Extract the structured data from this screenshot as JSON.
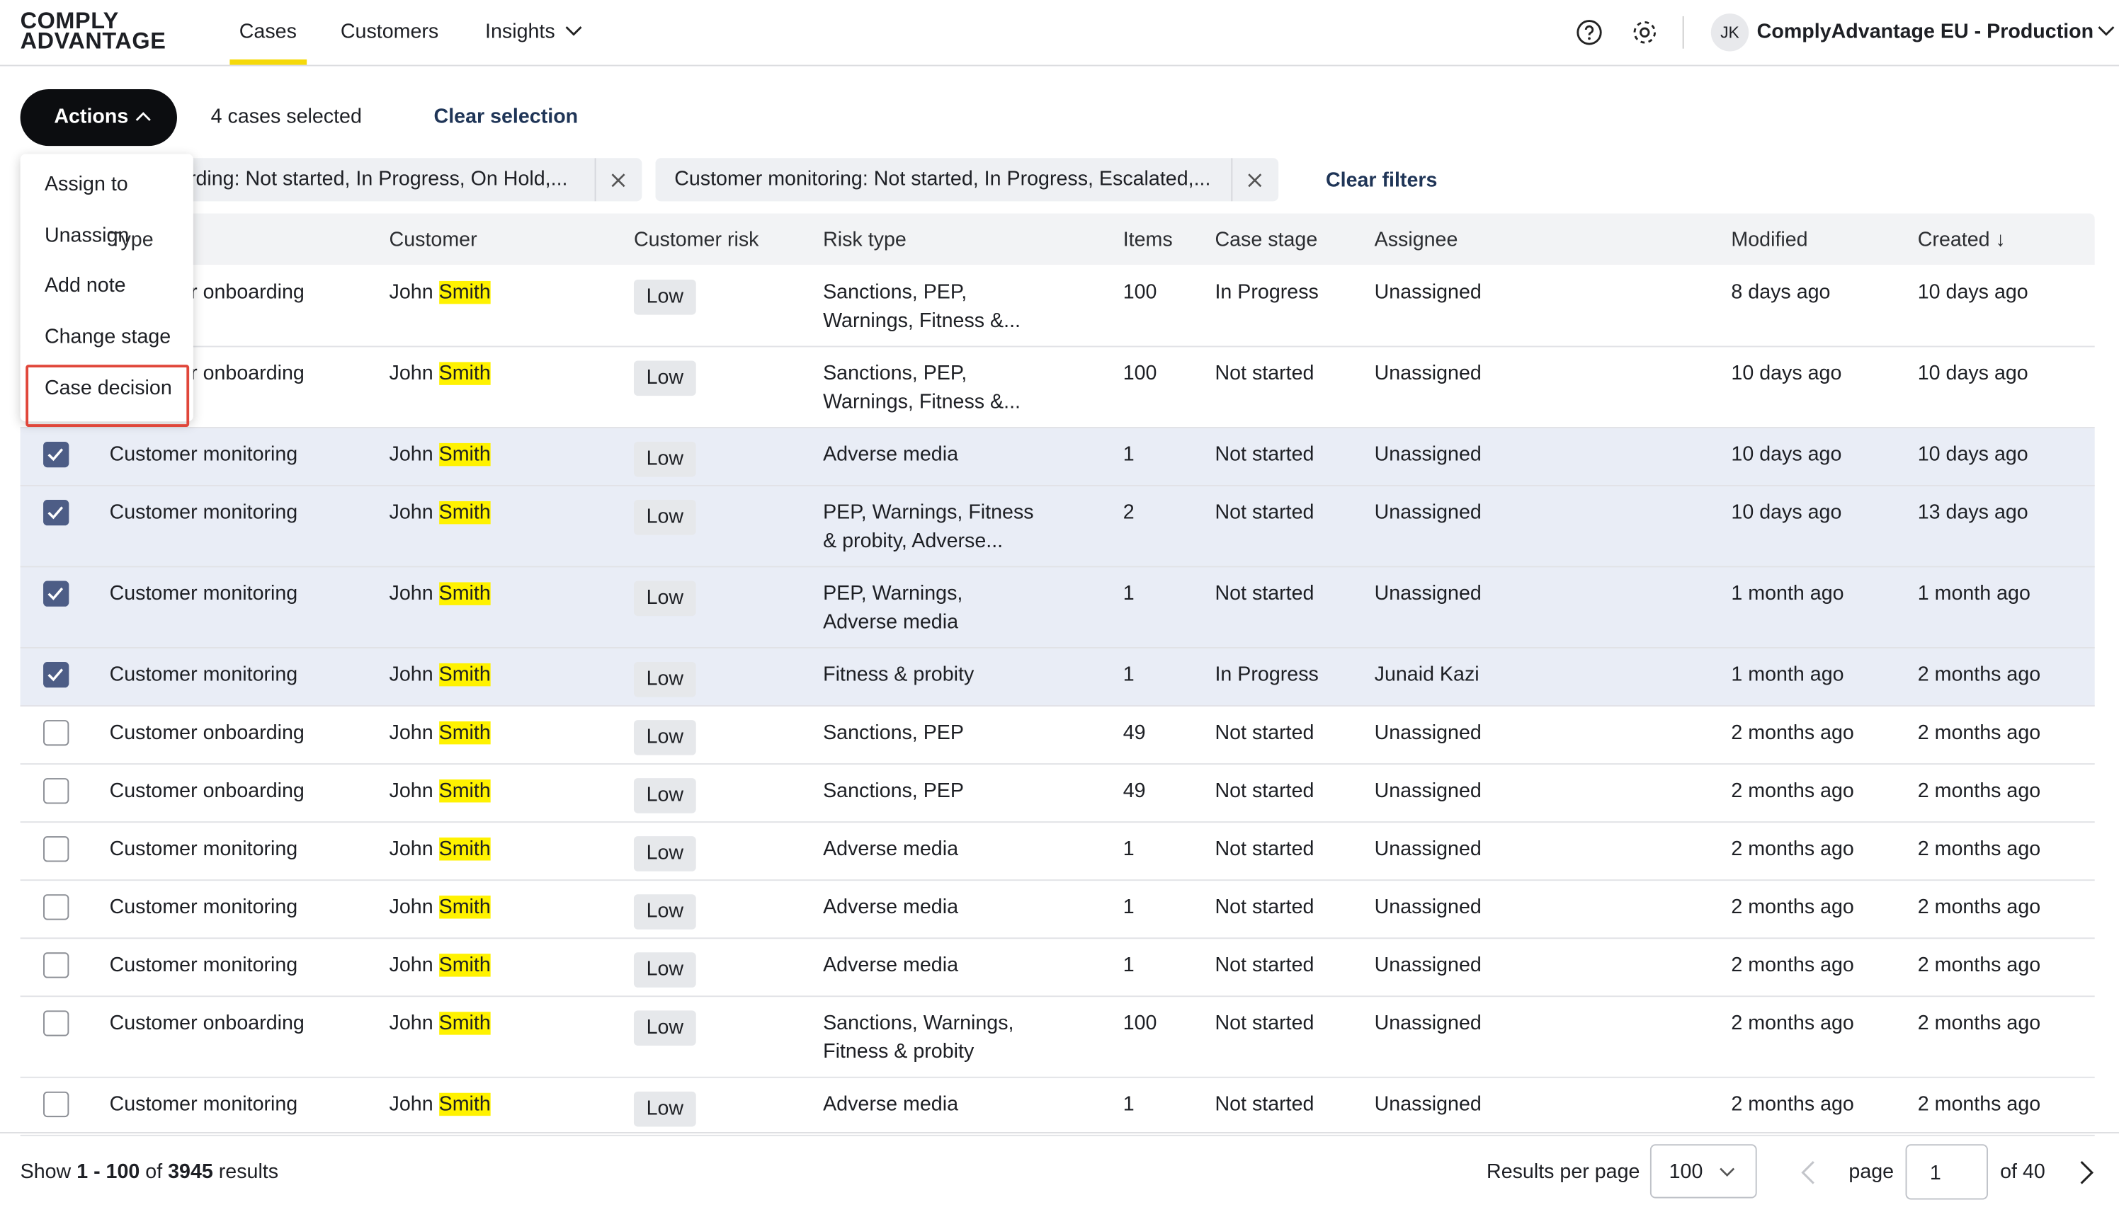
{
  "header": {
    "logo_line1": "COMPLY",
    "logo_line2": "ADVANTAGE",
    "nav": [
      "Cases",
      "Customers",
      "Insights"
    ],
    "avatar": "JK",
    "account": "ComplyAdvantage EU - Production"
  },
  "toolbar": {
    "actions": "Actions",
    "selected": "4 cases selected",
    "clear_selection": "Clear selection"
  },
  "filters": {
    "chips": [
      "Customer onboarding: Not started, In Progress, On Hold,...",
      "Customer monitoring: Not started, In Progress, Escalated,..."
    ],
    "clear": "Clear filters"
  },
  "table": {
    "columns": [
      "Type",
      "Customer",
      "Customer risk",
      "Risk type",
      "Items",
      "Case stage",
      "Assignee",
      "Modified",
      "Created ↓"
    ],
    "rows": [
      {
        "checked": false,
        "type": "Customer onboarding",
        "first": "John",
        "match": "Smith",
        "risk": "Low",
        "risk_type": [
          "Sanctions, PEP,",
          "Warnings, Fitness &..."
        ],
        "items": "100",
        "stage": "In Progress",
        "assignee": "Unassigned",
        "modified": "8 days ago",
        "created": "10 days ago"
      },
      {
        "checked": false,
        "type": "Customer onboarding",
        "first": "John",
        "match": "Smith",
        "risk": "Low",
        "risk_type": [
          "Sanctions, PEP,",
          "Warnings, Fitness &..."
        ],
        "items": "100",
        "stage": "Not started",
        "assignee": "Unassigned",
        "modified": "10 days ago",
        "created": "10 days ago"
      },
      {
        "checked": true,
        "type": "Customer monitoring",
        "first": "John",
        "match": "Smith",
        "risk": "Low",
        "risk_type": [
          "Adverse media"
        ],
        "items": "1",
        "stage": "Not started",
        "assignee": "Unassigned",
        "modified": "10 days ago",
        "created": "10 days ago"
      },
      {
        "checked": true,
        "type": "Customer monitoring",
        "first": "John",
        "match": "Smith",
        "risk": "Low",
        "risk_type": [
          "PEP, Warnings, Fitness",
          "& probity, Adverse..."
        ],
        "items": "2",
        "stage": "Not started",
        "assignee": "Unassigned",
        "modified": "10 days ago",
        "created": "13 days ago"
      },
      {
        "checked": true,
        "type": "Customer monitoring",
        "first": "John",
        "match": "Smith",
        "risk": "Low",
        "risk_type": [
          "PEP, Warnings,",
          "Adverse media"
        ],
        "items": "1",
        "stage": "Not started",
        "assignee": "Unassigned",
        "modified": "1 month ago",
        "created": "1 month ago"
      },
      {
        "checked": true,
        "type": "Customer monitoring",
        "first": "John",
        "match": "Smith",
        "risk": "Low",
        "risk_type": [
          "Fitness & probity"
        ],
        "items": "1",
        "stage": "In Progress",
        "assignee": "Junaid Kazi",
        "modified": "1 month ago",
        "created": "2 months ago"
      },
      {
        "checked": false,
        "type": "Customer onboarding",
        "first": "John",
        "match": "Smith",
        "risk": "Low",
        "risk_type": [
          "Sanctions, PEP"
        ],
        "items": "49",
        "stage": "Not started",
        "assignee": "Unassigned",
        "modified": "2 months ago",
        "created": "2 months ago"
      },
      {
        "checked": false,
        "type": "Customer onboarding",
        "first": "John",
        "match": "Smith",
        "risk": "Low",
        "risk_type": [
          "Sanctions, PEP"
        ],
        "items": "49",
        "stage": "Not started",
        "assignee": "Unassigned",
        "modified": "2 months ago",
        "created": "2 months ago"
      },
      {
        "checked": false,
        "type": "Customer monitoring",
        "first": "John",
        "match": "Smith",
        "risk": "Low",
        "risk_type": [
          "Adverse media"
        ],
        "items": "1",
        "stage": "Not started",
        "assignee": "Unassigned",
        "modified": "2 months ago",
        "created": "2 months ago"
      },
      {
        "checked": false,
        "type": "Customer monitoring",
        "first": "John",
        "match": "Smith",
        "risk": "Low",
        "risk_type": [
          "Adverse media"
        ],
        "items": "1",
        "stage": "Not started",
        "assignee": "Unassigned",
        "modified": "2 months ago",
        "created": "2 months ago"
      },
      {
        "checked": false,
        "type": "Customer monitoring",
        "first": "John",
        "match": "Smith",
        "risk": "Low",
        "risk_type": [
          "Adverse media"
        ],
        "items": "1",
        "stage": "Not started",
        "assignee": "Unassigned",
        "modified": "2 months ago",
        "created": "2 months ago"
      },
      {
        "checked": false,
        "type": "Customer onboarding",
        "first": "John",
        "match": "Smith",
        "risk": "Low",
        "risk_type": [
          "Sanctions, Warnings,",
          "Fitness & probity"
        ],
        "items": "100",
        "stage": "Not started",
        "assignee": "Unassigned",
        "modified": "2 months ago",
        "created": "2 months ago"
      },
      {
        "checked": false,
        "type": "Customer monitoring",
        "first": "John",
        "match": "Smith",
        "risk": "Low",
        "risk_type": [
          "Adverse media"
        ],
        "items": "1",
        "stage": "Not started",
        "assignee": "Unassigned",
        "modified": "2 months ago",
        "created": "2 months ago"
      }
    ]
  },
  "menu": {
    "items": [
      "Assign to",
      "Unassign",
      "Add note",
      "Change stage",
      "Case decision"
    ],
    "highlighted": 4
  },
  "footer": {
    "show": "Show",
    "range": "1 - 100",
    "of": "of",
    "total": "3945",
    "results": "results",
    "per_page_label": "Results per page",
    "per_page": "100",
    "page_label": "page",
    "page": "1",
    "page_count": "of 40"
  }
}
